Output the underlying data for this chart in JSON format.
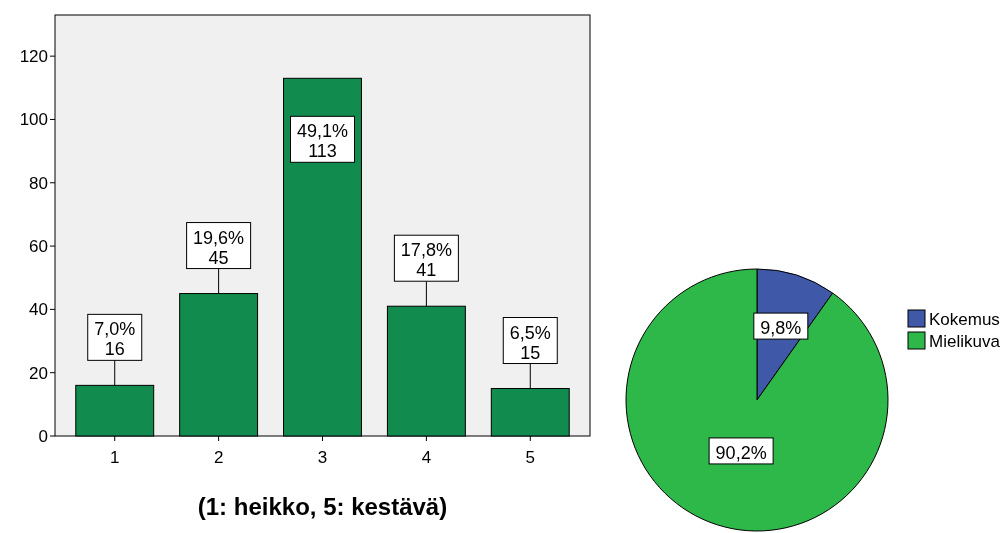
{
  "chart_data": [
    {
      "type": "bar",
      "xlabel": "(1: heikko, 5: kestävä)",
      "categories": [
        "1",
        "2",
        "3",
        "4",
        "5"
      ],
      "values": [
        16,
        45,
        113,
        41,
        15
      ],
      "color": "#118c4e",
      "value_labels": [
        "7,0%\n16",
        "19,6%\n45",
        "49,1%\n113",
        "17,8%\n41",
        "6,5%\n15"
      ],
      "ylim": [
        0,
        133
      ],
      "yticks": [
        0,
        20,
        40,
        60,
        80,
        100,
        120
      ],
      "grid": false
    },
    {
      "type": "pie",
      "categories": [
        "Kokemus",
        "Mielikuva"
      ],
      "values": [
        9.8,
        90.2
      ],
      "colors": [
        "#3f58a8",
        "#2eb84a"
      ],
      "value_labels": [
        "9,8%",
        "90,2%"
      ],
      "legend": "right"
    }
  ]
}
